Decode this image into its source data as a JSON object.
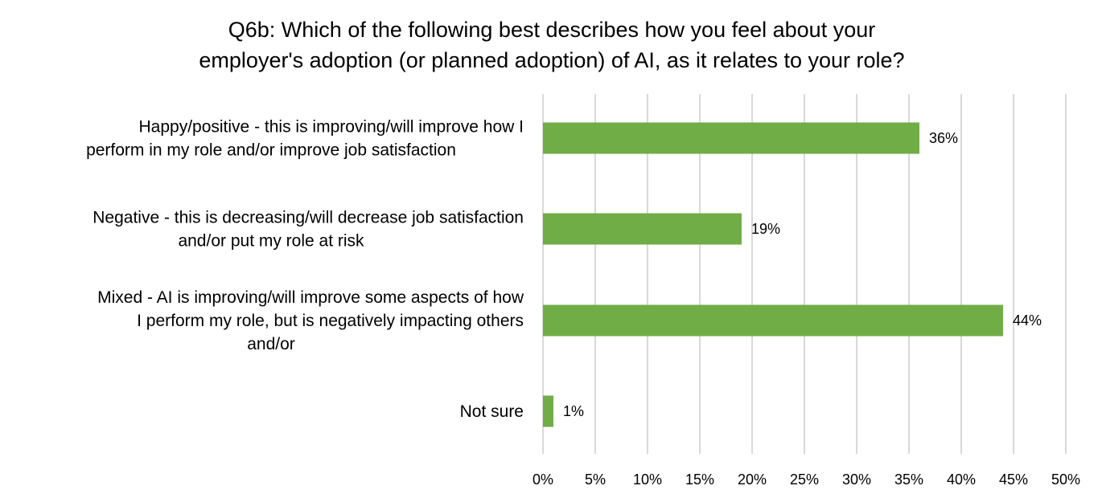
{
  "chart_data": {
    "type": "bar",
    "orientation": "horizontal",
    "title": [
      "Q6b: Which of the following best describes how you feel about your",
      "employer's adoption (or planned adoption) of AI, as it relates to your role?"
    ],
    "categories": [
      [
        "Happy/positive - this is improving/will improve how I",
        "perform in my role and/or improve job satisfaction"
      ],
      [
        "Negative - this is decreasing/will decrease job satisfaction",
        "and/or put my role at risk"
      ],
      [
        "Mixed - AI is improving/will improve some aspects of how",
        "I perform my role, but is negatively impacting others",
        "and/or"
      ],
      [
        "Not sure"
      ]
    ],
    "values": [
      36,
      19,
      44,
      1
    ],
    "data_labels": [
      "36%",
      "19%",
      "44%",
      "1%"
    ],
    "x_ticks": [
      "0%",
      "5%",
      "10%",
      "15%",
      "20%",
      "25%",
      "30%",
      "35%",
      "40%",
      "45%",
      "50%"
    ],
    "xlim": [
      0,
      50
    ],
    "grid": "vertical",
    "legend": "none",
    "bar_color": "#70ad47"
  }
}
